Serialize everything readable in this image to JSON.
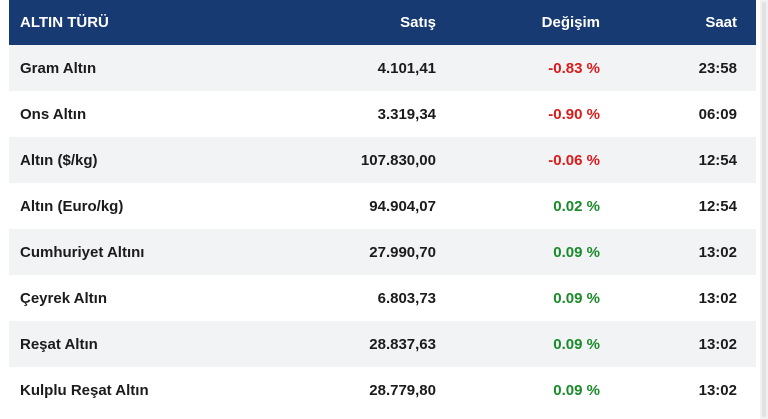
{
  "table": {
    "headers": {
      "name": "ALTIN TÜRÜ",
      "price": "Satış",
      "change": "Değişim",
      "time": "Saat"
    },
    "rows": [
      {
        "name": "Gram Altın",
        "price": "4.101,41",
        "change": "-0.83 %",
        "time": "23:58",
        "trend": "negative"
      },
      {
        "name": "Ons Altın",
        "price": "3.319,34",
        "change": "-0.90 %",
        "time": "06:09",
        "trend": "negative"
      },
      {
        "name": "Altın ($/kg)",
        "price": "107.830,00",
        "change": "-0.06 %",
        "time": "12:54",
        "trend": "negative"
      },
      {
        "name": "Altın (Euro/kg)",
        "price": "94.904,07",
        "change": "0.02 %",
        "time": "12:54",
        "trend": "positive"
      },
      {
        "name": "Cumhuriyet Altını",
        "price": "27.990,70",
        "change": "0.09 %",
        "time": "13:02",
        "trend": "positive"
      },
      {
        "name": "Çeyrek Altın",
        "price": "6.803,73",
        "change": "0.09 %",
        "time": "13:02",
        "trend": "positive"
      },
      {
        "name": "Reşat Altın",
        "price": "28.837,63",
        "change": "0.09 %",
        "time": "13:02",
        "trend": "positive"
      },
      {
        "name": "Kulplu Reşat Altın",
        "price": "28.779,80",
        "change": "0.09 %",
        "time": "13:02",
        "trend": "positive"
      }
    ]
  },
  "colors": {
    "header_bg": "#173a73",
    "alt_row_bg": "#f2f3f5",
    "negative": "#d81b1b",
    "positive": "#1a8a2a"
  }
}
